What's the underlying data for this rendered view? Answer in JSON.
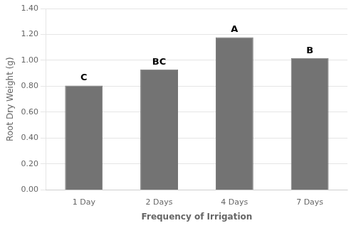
{
  "chart_data": {
    "type": "bar",
    "categories": [
      "1 Day",
      "2 Days",
      "4 Days",
      "7 Days"
    ],
    "values": [
      0.805,
      0.93,
      1.178,
      1.018
    ],
    "annotations": [
      "C",
      "BC",
      "A",
      "B"
    ],
    "color": "#737373",
    "xlabel": "Frequency of Irrigation",
    "ylabel": "Root Dry Weight (g)",
    "ylim": [
      0.0,
      1.4
    ],
    "yticks": [
      {
        "value": 0.0,
        "label": "0.00"
      },
      {
        "value": 0.2,
        "label": "0.20"
      },
      {
        "value": 0.4,
        "label": "0.40"
      },
      {
        "value": 0.6,
        "label": "0.60"
      },
      {
        "value": 0.8,
        "label": "0.80"
      },
      {
        "value": 1.0,
        "label": "1.00"
      },
      {
        "value": 1.2,
        "label": "1.20"
      },
      {
        "value": 1.4,
        "label": "1.40"
      }
    ],
    "grid": true
  }
}
